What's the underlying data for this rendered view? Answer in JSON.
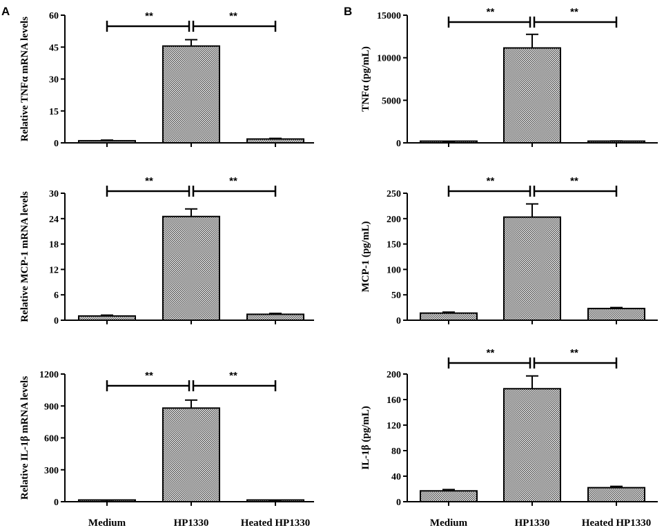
{
  "panel_labels": [
    "A",
    "B"
  ],
  "categories": [
    "Medium",
    "HP1330",
    "Heated HP1330"
  ],
  "chart_data": [
    {
      "type": "bar",
      "panel": "A",
      "ylabel": "Relative TNFα mRNA levels",
      "ylim": [
        0,
        60
      ],
      "yticks": [
        0,
        15,
        30,
        45,
        60
      ],
      "categories": [
        "Medium",
        "HP1330",
        "Heated HP1330"
      ],
      "values": [
        1,
        45.5,
        1.8
      ],
      "errors": [
        0.3,
        3,
        0.3
      ],
      "significance": [
        {
          "from": "Medium",
          "to": "HP1330",
          "label": "**"
        },
        {
          "from": "HP1330",
          "to": "Heated HP1330",
          "label": "**"
        }
      ]
    },
    {
      "type": "bar",
      "panel": "A",
      "ylabel": "Relative MCP-1 mRNA levels",
      "ylim": [
        0,
        30
      ],
      "yticks": [
        0,
        6,
        12,
        18,
        24,
        30
      ],
      "categories": [
        "Medium",
        "HP1330",
        "Heated HP1330"
      ],
      "values": [
        1,
        24.5,
        1.4
      ],
      "errors": [
        0.2,
        1.8,
        0.2
      ],
      "significance": [
        {
          "from": "Medium",
          "to": "HP1330",
          "label": "**"
        },
        {
          "from": "HP1330",
          "to": "Heated HP1330",
          "label": "**"
        }
      ]
    },
    {
      "type": "bar",
      "panel": "A",
      "ylabel": "Relative IL-1β mRNA levels",
      "ylim": [
        0,
        1200
      ],
      "yticks": [
        0,
        300,
        600,
        900,
        1200
      ],
      "categories": [
        "Medium",
        "HP1330",
        "Heated HP1330"
      ],
      "values": [
        1,
        880,
        2
      ],
      "errors": [
        0.5,
        75,
        0.5
      ],
      "significance": [
        {
          "from": "Medium",
          "to": "HP1330",
          "label": "**"
        },
        {
          "from": "HP1330",
          "to": "Heated HP1330",
          "label": "**"
        }
      ]
    },
    {
      "type": "bar",
      "panel": "B",
      "ylabel": "TNFα (pg/mL)",
      "ylim": [
        0,
        15000
      ],
      "yticks": [
        0,
        5000,
        10000,
        15000
      ],
      "categories": [
        "Medium",
        "HP1330",
        "Heated HP1330"
      ],
      "values": [
        120,
        11150,
        180
      ],
      "errors": [
        40,
        1600,
        40
      ],
      "significance": [
        {
          "from": "Medium",
          "to": "HP1330",
          "label": "**"
        },
        {
          "from": "HP1330",
          "to": "Heated HP1330",
          "label": "**"
        }
      ]
    },
    {
      "type": "bar",
      "panel": "B",
      "ylabel": "MCP-1 (pg/mL)",
      "ylim": [
        0,
        250
      ],
      "yticks": [
        0,
        50,
        100,
        150,
        200,
        250
      ],
      "categories": [
        "Medium",
        "HP1330",
        "Heated HP1330"
      ],
      "values": [
        14,
        203,
        23
      ],
      "errors": [
        2,
        26,
        2
      ],
      "significance": [
        {
          "from": "Medium",
          "to": "HP1330",
          "label": "**"
        },
        {
          "from": "HP1330",
          "to": "Heated HP1330",
          "label": "**"
        }
      ]
    },
    {
      "type": "bar",
      "panel": "B",
      "ylabel": "IL-1β (pg/mL)",
      "ylim": [
        0,
        200
      ],
      "yticks": [
        0,
        40,
        80,
        120,
        160,
        200
      ],
      "categories": [
        "Medium",
        "HP1330",
        "Heated HP1330"
      ],
      "values": [
        17,
        177,
        22
      ],
      "errors": [
        2,
        20,
        2
      ],
      "significance": [
        {
          "from": "Medium",
          "to": "HP1330",
          "label": "**"
        },
        {
          "from": "HP1330",
          "to": "Heated HP1330",
          "label": "**"
        }
      ]
    }
  ]
}
